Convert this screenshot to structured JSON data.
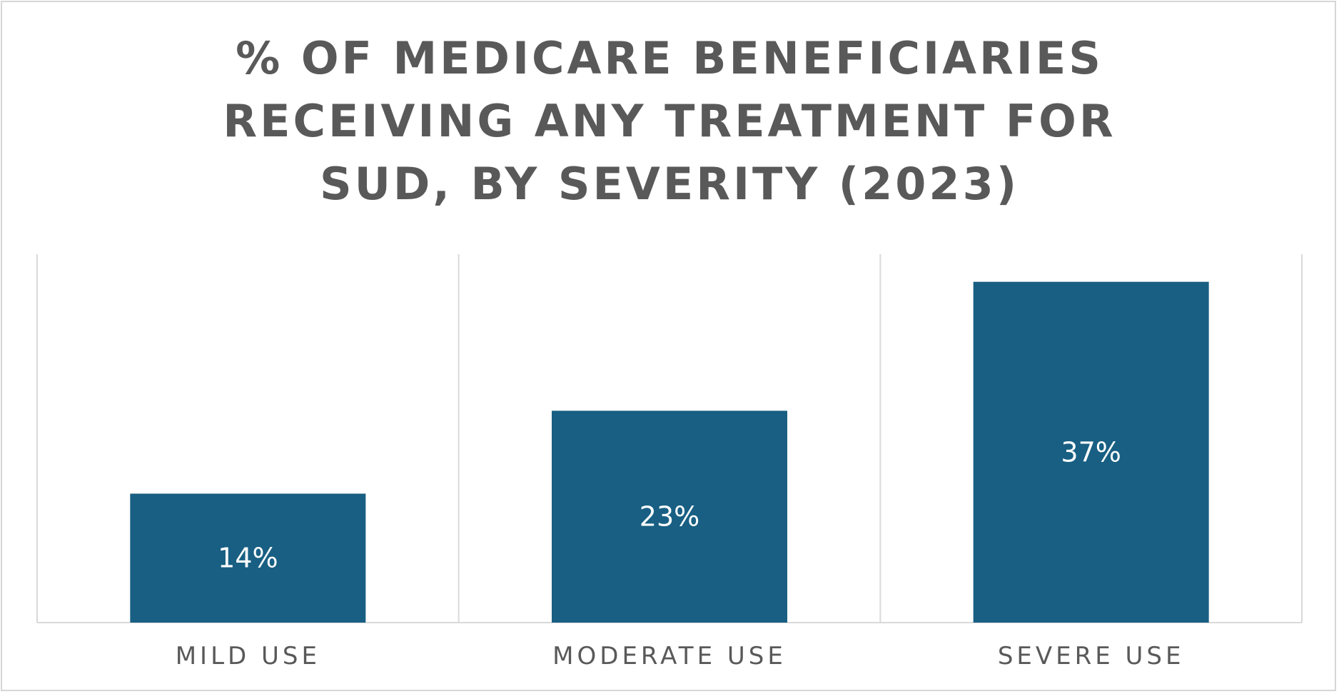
{
  "chart_data": {
    "type": "bar",
    "title_lines": [
      "% OF MEDICARE BENEFICIARIES",
      "RECEIVING ANY TREATMENT FOR",
      "SUD, BY SEVERITY (2023)"
    ],
    "categories": [
      "MILD USE",
      "MODERATE USE",
      "SEVERE USE"
    ],
    "values": [
      14,
      23,
      37
    ],
    "data_labels": [
      "14%",
      "23%",
      "37%"
    ],
    "ylim": [
      0,
      40
    ],
    "grid": false,
    "bar_color": "#185F83",
    "divider_color": "#d9d9d9",
    "label_color": "#595959"
  }
}
